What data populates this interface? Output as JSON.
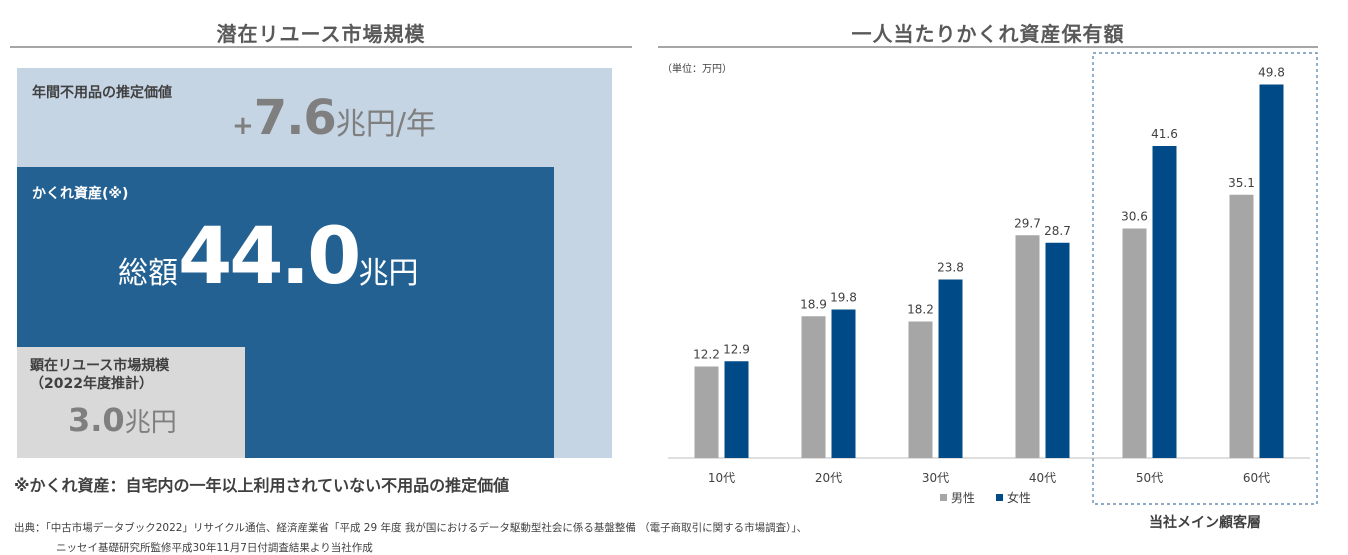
{
  "left": {
    "title": "潜在リユース市場規模",
    "annual": {
      "label": "年間不用品の推定価値",
      "prefix": "+",
      "number": "7.6",
      "unit": "兆円/年"
    },
    "hidden": {
      "label": "かくれ資産(※)",
      "prefix": "総額",
      "number": "44.0",
      "unit": "兆円"
    },
    "visible": {
      "label1": "顕在リユース市場規模",
      "label2": "（2022年度推計）",
      "number": "3.0",
      "unit": "兆円"
    },
    "note": "※かくれ資産：自宅内の一年以上利用されていない不用品の推定価値"
  },
  "right": {
    "title": "一人当たりかくれ資産保有額",
    "unit_note": "（単位：万円）",
    "highlight_label": "当社メイン顧客層"
  },
  "chart_data": {
    "type": "bar",
    "title": "一人当たりかくれ資産保有額",
    "ylabel": "（単位：万円）",
    "categories": [
      "10代",
      "20代",
      "30代",
      "40代",
      "50代",
      "60代"
    ],
    "series": [
      {
        "name": "男性",
        "color": "#a6a6a6",
        "values": [
          12.2,
          18.9,
          18.2,
          29.7,
          30.6,
          35.1
        ]
      },
      {
        "name": "女性",
        "color": "#004b87",
        "values": [
          12.9,
          19.8,
          23.8,
          28.7,
          41.6,
          49.8
        ]
      }
    ],
    "ylim": [
      0,
      50
    ],
    "grid": false,
    "legend": "bottom"
  },
  "source": {
    "line1": "出典：「中古市場データブック2022」リサイクル通信、経済産業省「平成 29 年度 我が国におけるデータ駆動型社会に係る基盤整備 （電子商取引に関する市場調査）」、",
    "line2": "ニッセイ基礎研究所監修平成30年11月7日付調査結果より当社作成"
  }
}
